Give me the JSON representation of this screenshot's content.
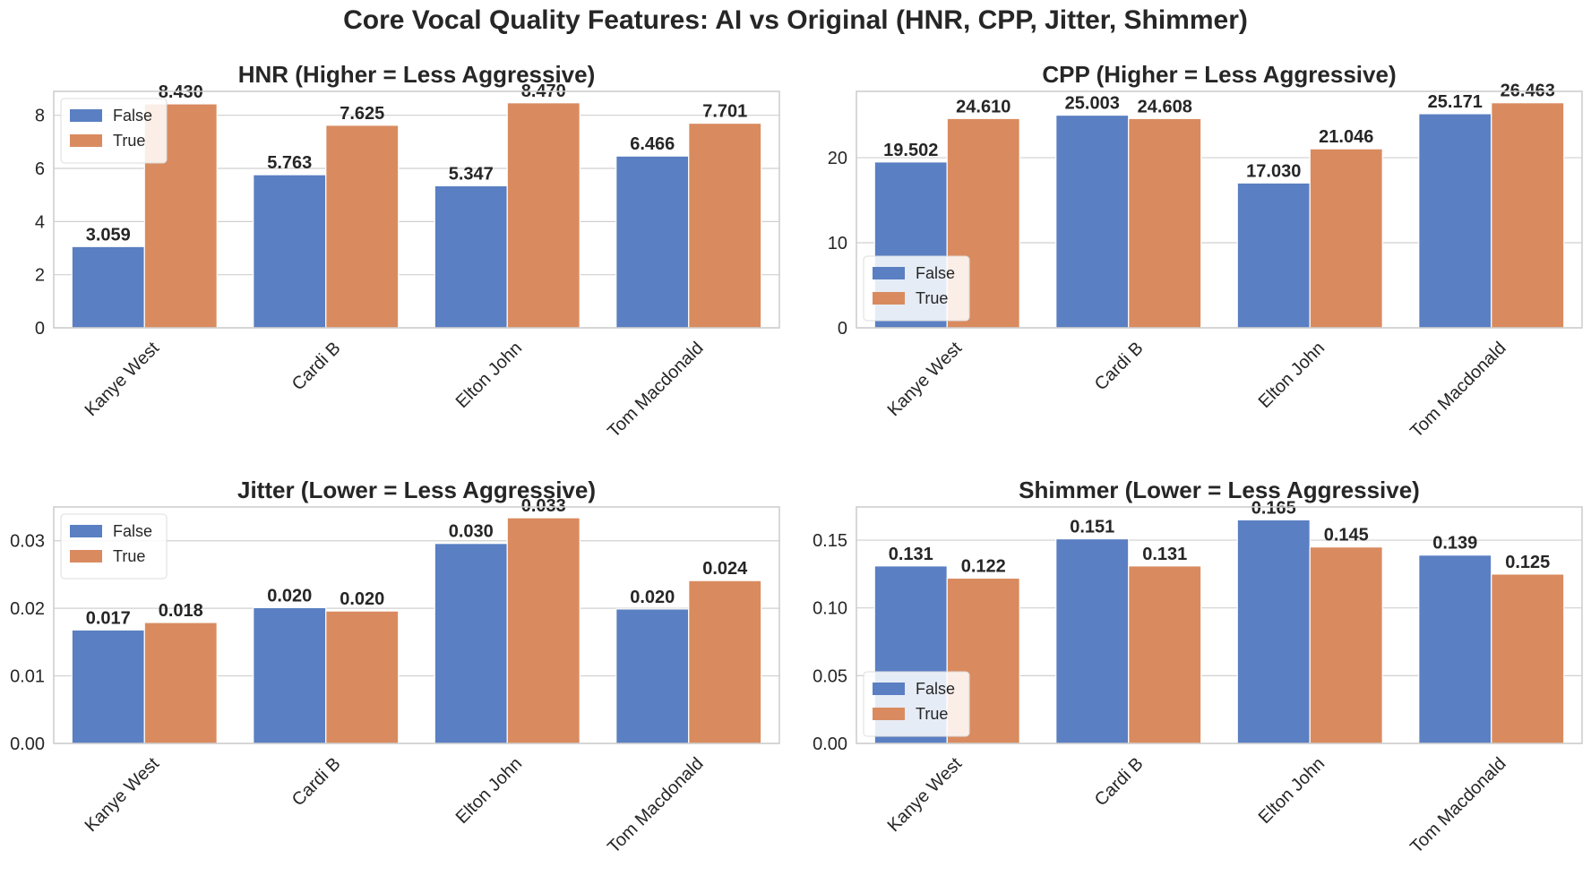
{
  "figure": {
    "title": "Core Vocal Quality Features: AI vs Original (HNR, CPP, Jitter, Shimmer)",
    "colors": {
      "False": "#5a7fc2",
      "True": "#d98b5f",
      "grid": "#d0d0d0",
      "spine": "#cccccc",
      "text": "#262626"
    }
  },
  "chart_data": [
    {
      "type": "bar",
      "title": "HNR (Higher = Less Aggressive)",
      "categories": [
        "Kanye West",
        "Cardi B",
        "Elton John",
        "Tom Macdonald"
      ],
      "series": [
        {
          "name": "False",
          "values": [
            3.059,
            5.763,
            5.347,
            6.466
          ],
          "labels": [
            "3.059",
            "5.763",
            "5.347",
            "6.466"
          ]
        },
        {
          "name": "True",
          "values": [
            8.43,
            7.625,
            8.47,
            7.701
          ],
          "labels": [
            "8.430",
            "7.625",
            "8.470",
            "7.701"
          ]
        }
      ],
      "ylim": [
        0,
        8.9
      ],
      "yticks": [
        0,
        2,
        4,
        6,
        8
      ],
      "yticklabels": [
        "0",
        "2",
        "4",
        "6",
        "8"
      ],
      "legend": "upper-left",
      "grid": true
    },
    {
      "type": "bar",
      "title": "CPP (Higher = Less Aggressive)",
      "categories": [
        "Kanye West",
        "Cardi B",
        "Elton John",
        "Tom Macdonald"
      ],
      "series": [
        {
          "name": "False",
          "values": [
            19.502,
            25.003,
            17.03,
            25.171
          ],
          "labels": [
            "19.502",
            "25.003",
            "17.030",
            "25.171"
          ]
        },
        {
          "name": "True",
          "values": [
            24.61,
            24.608,
            21.046,
            26.463
          ],
          "labels": [
            "24.610",
            "24.608",
            "21.046",
            "26.463"
          ]
        }
      ],
      "ylim": [
        0,
        27.8
      ],
      "yticks": [
        0,
        10,
        20
      ],
      "yticklabels": [
        "0",
        "10",
        "20"
      ],
      "legend": "lower-left",
      "grid": true
    },
    {
      "type": "bar",
      "title": "Jitter (Lower = Less Aggressive)",
      "categories": [
        "Kanye West",
        "Cardi B",
        "Elton John",
        "Tom Macdonald"
      ],
      "series": [
        {
          "name": "False",
          "values": [
            0.0168,
            0.0201,
            0.0296,
            0.0199
          ],
          "labels": [
            "0.017",
            "0.020",
            "0.030",
            "0.020"
          ]
        },
        {
          "name": "True",
          "values": [
            0.0179,
            0.0196,
            0.0334,
            0.0241
          ],
          "labels": [
            "0.018",
            "0.020",
            "0.033",
            "0.024"
          ]
        }
      ],
      "ylim": [
        0,
        0.035
      ],
      "yticks": [
        0,
        0.01,
        0.02,
        0.03
      ],
      "yticklabels": [
        "0.00",
        "0.01",
        "0.02",
        "0.03"
      ],
      "legend": "upper-left",
      "grid": true
    },
    {
      "type": "bar",
      "title": "Shimmer (Lower = Less Aggressive)",
      "categories": [
        "Kanye West",
        "Cardi B",
        "Elton John",
        "Tom Macdonald"
      ],
      "series": [
        {
          "name": "False",
          "values": [
            0.131,
            0.151,
            0.165,
            0.139
          ],
          "labels": [
            "0.131",
            "0.151",
            "0.165",
            "0.139"
          ]
        },
        {
          "name": "True",
          "values": [
            0.122,
            0.131,
            0.145,
            0.125
          ],
          "labels": [
            "0.122",
            "0.131",
            "0.145",
            "0.125"
          ]
        }
      ],
      "ylim": [
        0,
        0.1745
      ],
      "yticks": [
        0,
        0.05,
        0.1,
        0.15
      ],
      "yticklabels": [
        "0.00",
        "0.05",
        "0.10",
        "0.15"
      ],
      "legend": "lower-left",
      "grid": true
    }
  ]
}
